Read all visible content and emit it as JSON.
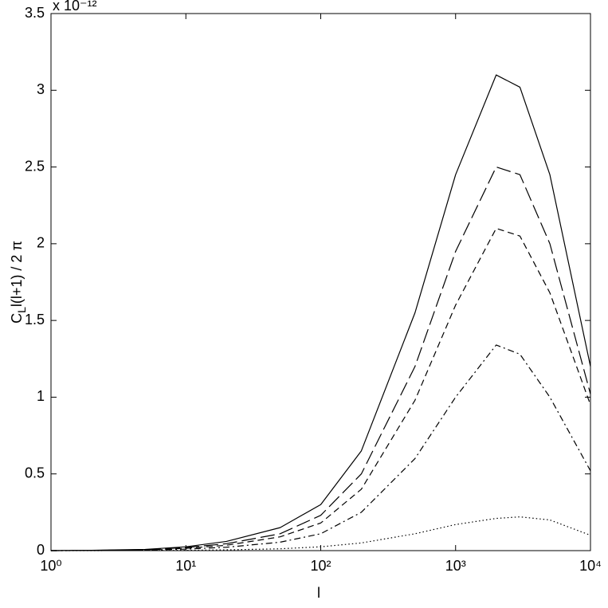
{
  "chart_data": {
    "type": "line",
    "xlabel": "l",
    "ylabel": {
      "symbol": "C",
      "subscript": "L",
      "text": "l(l+1) / 2 π"
    },
    "y_exponent": "x 10⁻¹²",
    "xscale": "log",
    "x": [
      1,
      2,
      5,
      10,
      20,
      50,
      100,
      200,
      500,
      1000,
      2000,
      3000,
      5000,
      10000
    ],
    "xlim": [
      1,
      10000
    ],
    "xticks": [
      {
        "value": 1,
        "label": "10⁰"
      },
      {
        "value": 10,
        "label": "10¹"
      },
      {
        "value": 100,
        "label": "10²"
      },
      {
        "value": 1000,
        "label": "10³"
      },
      {
        "value": 10000,
        "label": "10⁴"
      }
    ],
    "ylim": [
      0,
      3.5
    ],
    "yticks": [
      0,
      0.5,
      1,
      1.5,
      2,
      2.5,
      3,
      3.5
    ],
    "grid": false,
    "series": [
      {
        "color": "#000000",
        "dash": "solid",
        "values": [
          0,
          0.002,
          0.008,
          0.025,
          0.06,
          0.15,
          0.3,
          0.65,
          1.55,
          2.45,
          3.1,
          3.02,
          2.45,
          1.2
        ]
      },
      {
        "color": "#000000",
        "dash": "longdash",
        "values": [
          0,
          0.001,
          0.006,
          0.02,
          0.045,
          0.11,
          0.23,
          0.5,
          1.2,
          1.95,
          2.5,
          2.45,
          2.0,
          1.02
        ]
      },
      {
        "color": "#000000",
        "dash": "dash",
        "values": [
          0,
          0.001,
          0.005,
          0.015,
          0.035,
          0.09,
          0.18,
          0.4,
          0.98,
          1.6,
          2.1,
          2.05,
          1.68,
          0.95
        ]
      },
      {
        "color": "#000000",
        "dash": "dashdot",
        "values": [
          0,
          0.0005,
          0.003,
          0.01,
          0.022,
          0.055,
          0.11,
          0.25,
          0.6,
          1.0,
          1.34,
          1.28,
          1.0,
          0.52
        ]
      },
      {
        "color": "#000000",
        "dash": "dotted",
        "values": [
          0,
          0,
          0.001,
          0.002,
          0.005,
          0.012,
          0.025,
          0.05,
          0.11,
          0.17,
          0.21,
          0.22,
          0.2,
          0.1
        ]
      }
    ]
  }
}
